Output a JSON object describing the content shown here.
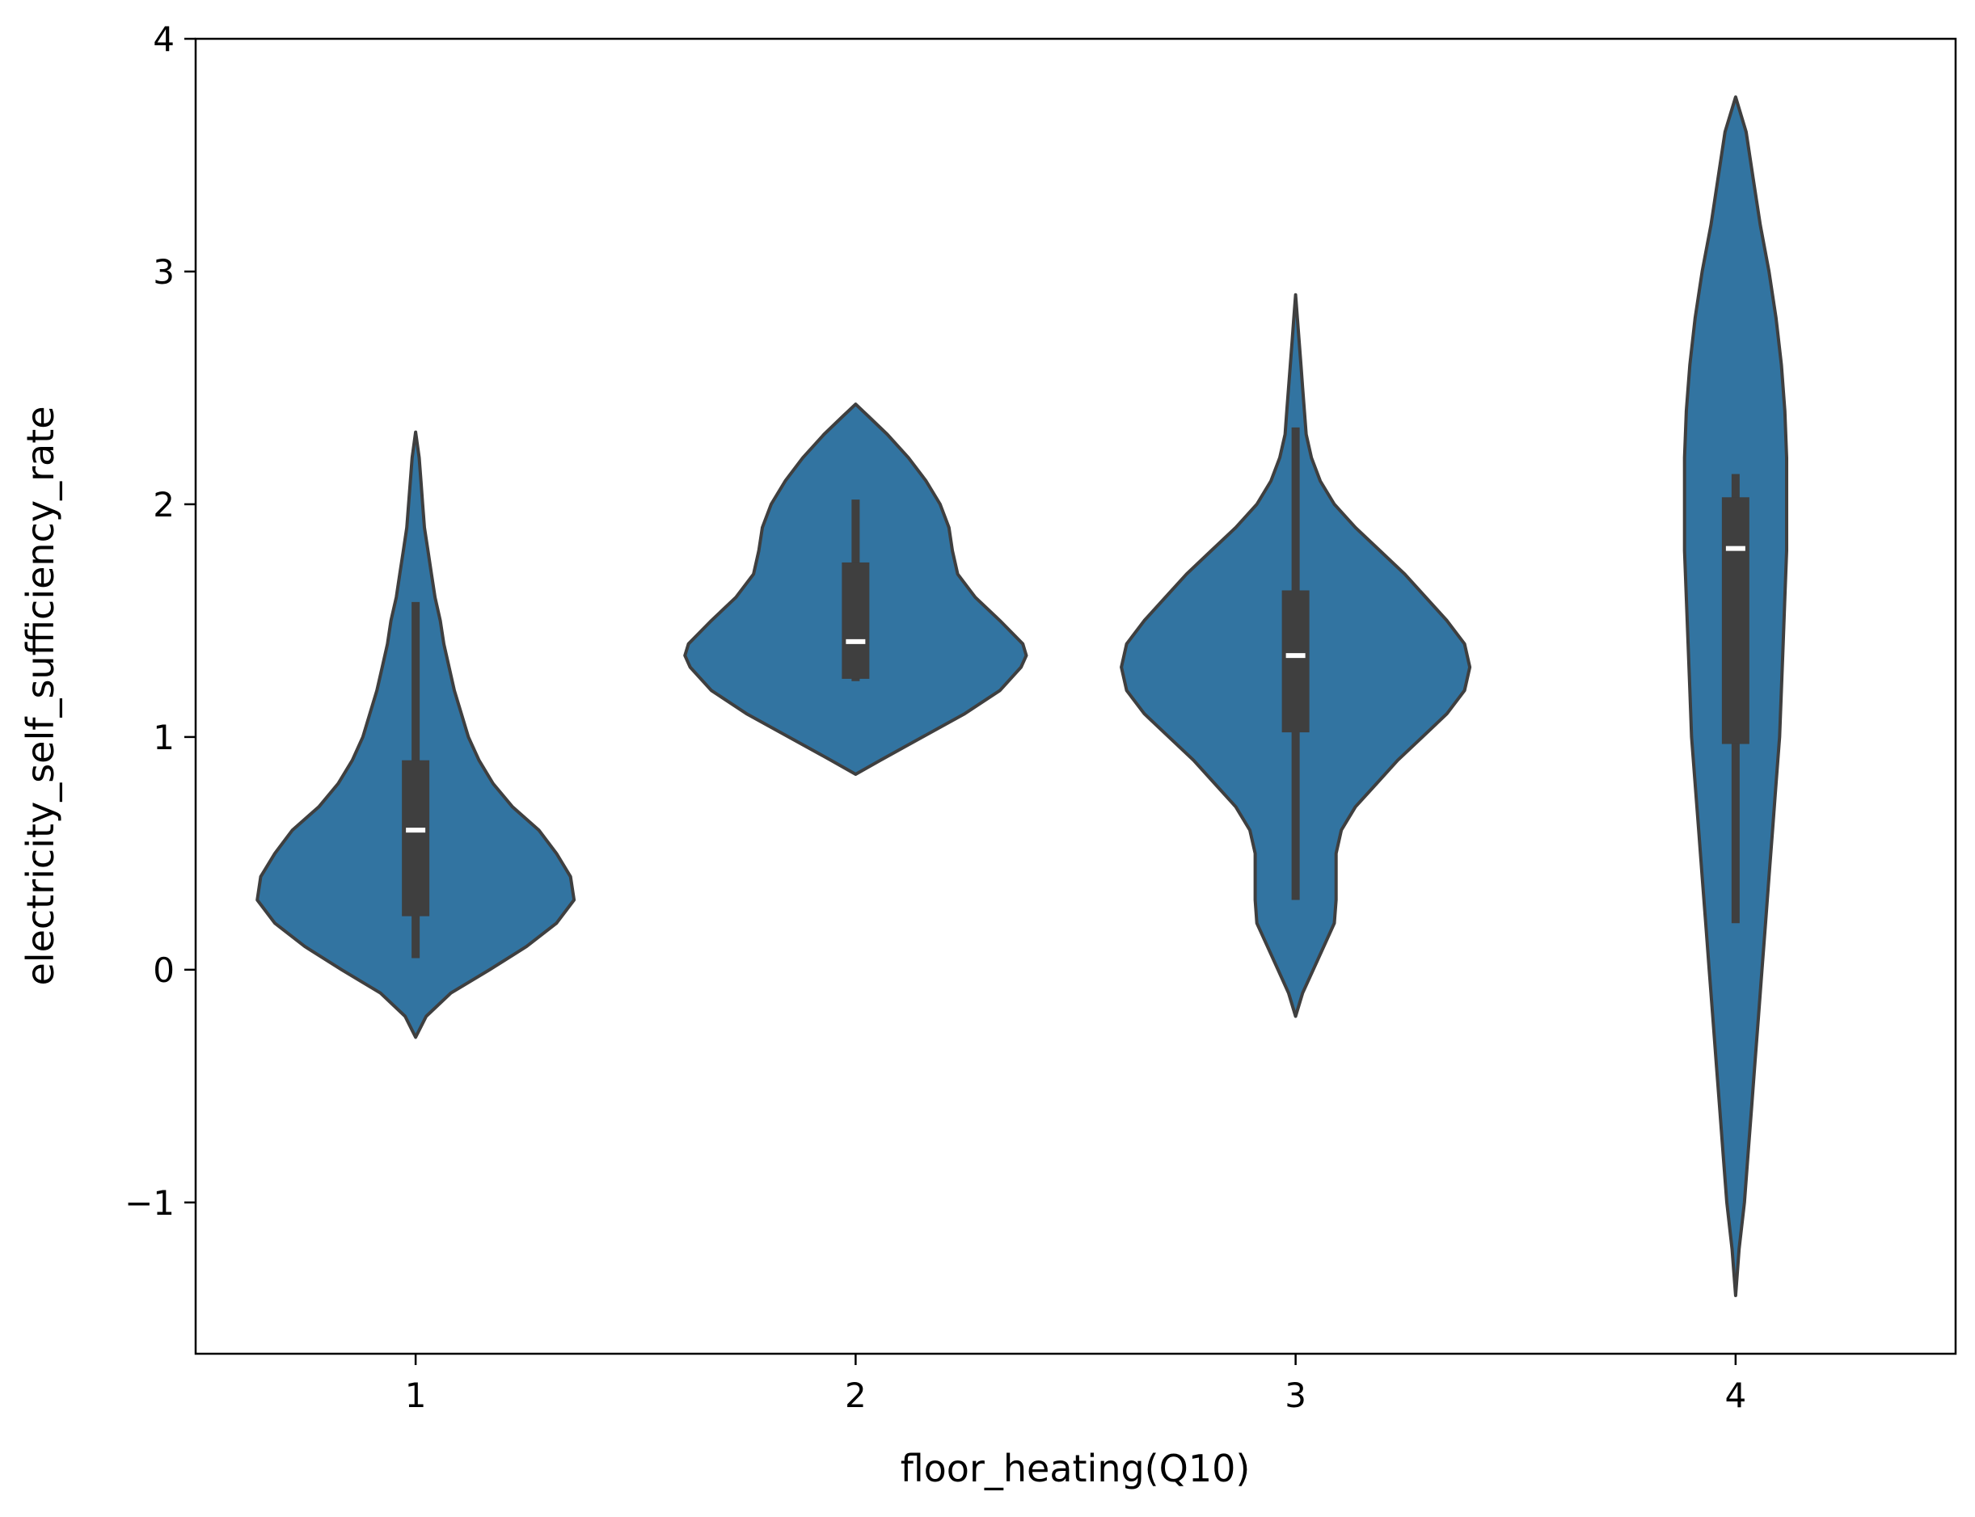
{
  "chart_data": {
    "type": "violin",
    "title": "",
    "xlabel": "floor_heating(Q10)",
    "ylabel": "electricity_self_sufficiency_rate",
    "categories": [
      "1",
      "2",
      "3",
      "4"
    ],
    "xlim": [
      0.5,
      4.5
    ],
    "ylim": [
      -1.65,
      4.0
    ],
    "yticks": [
      -1,
      0,
      1,
      2,
      3,
      4
    ],
    "yticklabels": [
      "−1",
      "0",
      "1",
      "2",
      "3",
      "4"
    ],
    "grid": false,
    "legend": "none",
    "colors": {
      "fill": "#3274a1",
      "edge": "#3f3f3f",
      "box": "#3f3f3f",
      "median": "#ffffff"
    },
    "violins": [
      {
        "category": "1",
        "min": 0.05,
        "q1": 0.23,
        "median": 0.6,
        "q3": 0.9,
        "max": 1.58,
        "profile": [
          [
            -0.29,
            0.0
          ],
          [
            -0.2,
            0.06
          ],
          [
            -0.1,
            0.2
          ],
          [
            0.0,
            0.42
          ],
          [
            0.1,
            0.63
          ],
          [
            0.2,
            0.8
          ],
          [
            0.3,
            0.9
          ],
          [
            0.4,
            0.88
          ],
          [
            0.5,
            0.8
          ],
          [
            0.6,
            0.7
          ],
          [
            0.7,
            0.55
          ],
          [
            0.8,
            0.44
          ],
          [
            0.9,
            0.36
          ],
          [
            1.0,
            0.3
          ],
          [
            1.1,
            0.26
          ],
          [
            1.2,
            0.22
          ],
          [
            1.3,
            0.19
          ],
          [
            1.4,
            0.16
          ],
          [
            1.5,
            0.14
          ],
          [
            1.6,
            0.11
          ],
          [
            1.7,
            0.09
          ],
          [
            1.8,
            0.07
          ],
          [
            1.9,
            0.05
          ],
          [
            2.0,
            0.04
          ],
          [
            2.1,
            0.03
          ],
          [
            2.2,
            0.02
          ],
          [
            2.31,
            0.0
          ]
        ]
      },
      {
        "category": "2",
        "min": 1.24,
        "q1": 1.25,
        "median": 1.41,
        "q3": 1.75,
        "max": 2.02,
        "profile": [
          [
            0.84,
            0.0
          ],
          [
            0.9,
            0.14
          ],
          [
            1.0,
            0.38
          ],
          [
            1.1,
            0.62
          ],
          [
            1.2,
            0.82
          ],
          [
            1.3,
            0.94
          ],
          [
            1.35,
            0.97
          ],
          [
            1.4,
            0.95
          ],
          [
            1.5,
            0.82
          ],
          [
            1.6,
            0.68
          ],
          [
            1.7,
            0.58
          ],
          [
            1.8,
            0.55
          ],
          [
            1.9,
            0.53
          ],
          [
            2.0,
            0.48
          ],
          [
            2.1,
            0.4
          ],
          [
            2.2,
            0.3
          ],
          [
            2.3,
            0.18
          ],
          [
            2.38,
            0.07
          ],
          [
            2.43,
            0.0
          ]
        ]
      },
      {
        "category": "3",
        "min": 0.3,
        "q1": 1.02,
        "median": 1.35,
        "q3": 1.63,
        "max": 2.33,
        "profile": [
          [
            -0.2,
            0.0
          ],
          [
            -0.1,
            0.04
          ],
          [
            0.0,
            0.1
          ],
          [
            0.1,
            0.16
          ],
          [
            0.2,
            0.22
          ],
          [
            0.3,
            0.23
          ],
          [
            0.4,
            0.23
          ],
          [
            0.5,
            0.23
          ],
          [
            0.6,
            0.26
          ],
          [
            0.7,
            0.34
          ],
          [
            0.8,
            0.46
          ],
          [
            0.9,
            0.58
          ],
          [
            1.0,
            0.72
          ],
          [
            1.1,
            0.86
          ],
          [
            1.2,
            0.96
          ],
          [
            1.3,
            0.99
          ],
          [
            1.4,
            0.96
          ],
          [
            1.5,
            0.86
          ],
          [
            1.6,
            0.74
          ],
          [
            1.7,
            0.62
          ],
          [
            1.8,
            0.48
          ],
          [
            1.9,
            0.34
          ],
          [
            2.0,
            0.22
          ],
          [
            2.1,
            0.14
          ],
          [
            2.2,
            0.09
          ],
          [
            2.3,
            0.06
          ],
          [
            2.4,
            0.05
          ],
          [
            2.5,
            0.04
          ],
          [
            2.6,
            0.03
          ],
          [
            2.7,
            0.02
          ],
          [
            2.8,
            0.01
          ],
          [
            2.9,
            0.0
          ]
        ]
      },
      {
        "category": "4",
        "min": 0.2,
        "q1": 0.97,
        "median": 1.81,
        "q3": 2.03,
        "max": 2.13,
        "profile": [
          [
            -1.4,
            0.0
          ],
          [
            -1.2,
            0.02
          ],
          [
            -1.0,
            0.05
          ],
          [
            -0.8,
            0.07
          ],
          [
            -0.6,
            0.09
          ],
          [
            -0.4,
            0.11
          ],
          [
            -0.2,
            0.13
          ],
          [
            0.0,
            0.15
          ],
          [
            0.2,
            0.17
          ],
          [
            0.4,
            0.19
          ],
          [
            0.6,
            0.21
          ],
          [
            0.8,
            0.23
          ],
          [
            1.0,
            0.25
          ],
          [
            1.2,
            0.26
          ],
          [
            1.4,
            0.27
          ],
          [
            1.6,
            0.28
          ],
          [
            1.8,
            0.29
          ],
          [
            2.0,
            0.29
          ],
          [
            2.2,
            0.29
          ],
          [
            2.4,
            0.28
          ],
          [
            2.6,
            0.26
          ],
          [
            2.8,
            0.23
          ],
          [
            3.0,
            0.19
          ],
          [
            3.2,
            0.14
          ],
          [
            3.4,
            0.1
          ],
          [
            3.6,
            0.06
          ],
          [
            3.75,
            0.0
          ]
        ]
      }
    ]
  }
}
